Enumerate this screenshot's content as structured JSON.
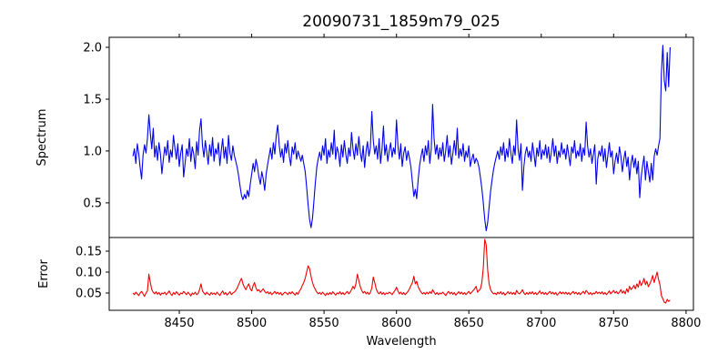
{
  "colors": {
    "spectrum_line": "#0000ee",
    "error_line": "#ee0000",
    "axis": "#000000",
    "background": "#ffffff"
  },
  "chart_data": {
    "type": "line",
    "title": "20090731_1859m79_025",
    "xlabel": "Wavelength",
    "grid": false,
    "legend": "none",
    "xlim": [
      8401.6,
      8805.1
    ],
    "xticks": [
      8450,
      8500,
      8550,
      8600,
      8650,
      8700,
      8750,
      8800
    ],
    "xtick_labels": [
      "8450",
      "8500",
      "8550",
      "8600",
      "8650",
      "8700",
      "8750",
      "8800"
    ],
    "x_start": 8418,
    "x_step": 1,
    "panels": [
      {
        "name": "spectrum",
        "ylabel": "Spectrum",
        "ylim": [
          0.165,
          2.097
        ],
        "yticks": [
          0.5,
          1.0,
          1.5,
          2.0
        ],
        "ytick_labels": [
          "0.5",
          "1.0",
          "1.5",
          "2.0"
        ]
      },
      {
        "name": "error",
        "ylabel": "Error",
        "ylim": [
          0.0087,
          0.1826
        ],
        "yticks": [
          0.05,
          0.1,
          0.15
        ],
        "ytick_labels": [
          "0.05",
          "0.10",
          "0.15"
        ]
      }
    ],
    "series": [
      {
        "name": "spectrum",
        "panel": 0,
        "color": "#0000ee",
        "values": [
          0.95,
          1.02,
          0.88,
          1.07,
          0.97,
          0.84,
          0.73,
          0.96,
          1.06,
          0.98,
          1.12,
          1.35,
          1.17,
          1.02,
          1.22,
          0.94,
          1.05,
          0.91,
          1.08,
          0.97,
          0.78,
          0.92,
          1.04,
          0.96,
          1.1,
          0.89,
          1.01,
          0.94,
          1.15,
          1.03,
          0.92,
          1.07,
          0.85,
          0.98,
          1.06,
          0.75,
          0.88,
          1.02,
          0.95,
          1.12,
          0.9,
          1.04,
          0.97,
          0.83,
          1.09,
          0.96,
          1.2,
          1.31,
          1.05,
          0.94,
          1.1,
          0.99,
          0.87,
          1.06,
          0.95,
          1.13,
          0.9,
          1.02,
          0.97,
          1.08,
          0.86,
          1.0,
          1.12,
          0.93,
          1.04,
          0.88,
          1.15,
          0.98,
          0.91,
          1.05,
          0.96,
          0.9,
          0.84,
          0.76,
          0.66,
          0.57,
          0.53,
          0.58,
          0.54,
          0.62,
          0.56,
          0.68,
          0.78,
          0.88,
          0.8,
          0.92,
          0.85,
          0.75,
          0.68,
          0.8,
          0.73,
          0.62,
          0.78,
          0.87,
          0.95,
          1.03,
          0.92,
          1.08,
          0.97,
          1.15,
          1.25,
          1.06,
          0.94,
          1.02,
          0.89,
          1.07,
          0.98,
          1.1,
          0.95,
          0.86,
          1.04,
          0.97,
          1.08,
          0.92,
          1.0,
          0.95,
          0.9,
          0.96,
          0.88,
          0.8,
          0.65,
          0.48,
          0.34,
          0.26,
          0.35,
          0.52,
          0.7,
          0.85,
          0.93,
          0.99,
          0.91,
          1.05,
          0.96,
          1.12,
          0.88,
          1.01,
          0.94,
          1.08,
          0.97,
          1.2,
          0.92,
          1.04,
          0.98,
          0.85,
          1.06,
          0.94,
          1.1,
          0.97,
          0.88,
          1.03,
          0.95,
          1.18,
          1.02,
          0.92,
          1.07,
          0.96,
          1.14,
          0.99,
          0.9,
          1.05,
          0.84,
          1.0,
          1.09,
          0.95,
          1.03,
          1.38,
          1.1,
          0.97,
          1.05,
          0.92,
          1.12,
          0.88,
          1.02,
          1.24,
          0.96,
          1.06,
          0.9,
          1.0,
          1.08,
          0.94,
          1.03,
          0.97,
          1.3,
          1.05,
          0.92,
          1.07,
          0.85,
          0.98,
          1.04,
          0.91,
          1.0,
          0.93,
          0.84,
          0.7,
          0.56,
          0.63,
          0.54,
          0.72,
          0.86,
          0.95,
          1.02,
          0.9,
          1.05,
          0.96,
          1.1,
          0.88,
          1.02,
          1.45,
          1.12,
          0.97,
          1.06,
          0.92,
          1.03,
          0.95,
          1.08,
          0.9,
          1.0,
          1.15,
          0.94,
          1.05,
          0.87,
          0.98,
          1.1,
          0.96,
          1.22,
          0.93,
          1.02,
          0.95,
          1.07,
          0.9,
          1.0,
          0.94,
          1.05,
          0.85,
          0.92,
          0.97,
          0.88,
          0.93,
          0.9,
          0.84,
          0.74,
          0.64,
          0.5,
          0.34,
          0.23,
          0.31,
          0.46,
          0.61,
          0.72,
          0.82,
          0.89,
          0.95,
          1.0,
          0.92,
          1.04,
          0.96,
          1.08,
          0.9,
          1.02,
          0.94,
          1.12,
          0.98,
          0.88,
          1.05,
          0.96,
          1.3,
          1.02,
          0.91,
          1.07,
          0.62,
          0.85,
          0.98,
          1.04,
          0.94,
          1.0,
          0.9,
          1.08,
          0.97,
          0.85,
          1.03,
          0.95,
          1.1,
          0.92,
          1.01,
          0.96,
          1.06,
          0.93,
          1.04,
          0.89,
          0.99,
          1.12,
          0.95,
          1.05,
          0.88,
          1.0,
          0.94,
          1.08,
          0.97,
          1.02,
          0.92,
          1.06,
          0.96,
          0.86,
          1.04,
          0.98,
          1.1,
          0.93,
          1.0,
          0.95,
          1.07,
          0.9,
          1.03,
          0.96,
          1.28,
          1.05,
          0.94,
          1.02,
          0.88,
          0.97,
          1.06,
          0.68,
          0.92,
          1.0,
          0.95,
          1.05,
          0.9,
          1.02,
          0.84,
          0.96,
          1.08,
          0.94,
          1.0,
          0.78,
          0.9,
          0.98,
          0.88,
          1.04,
          0.95,
          0.8,
          0.92,
          1.0,
          0.85,
          0.94,
          0.72,
          0.88,
          0.96,
          0.84,
          0.93,
          0.78,
          0.9,
          0.55,
          0.75,
          0.86,
          0.95,
          0.72,
          0.9,
          0.8,
          0.7,
          0.88,
          0.72,
          0.95,
          1.02,
          0.96,
          1.05,
          1.12,
          1.75,
          2.02,
          1.68,
          1.58,
          1.95,
          1.62,
          2.0
        ]
      },
      {
        "name": "error",
        "panel": 1,
        "color": "#ee0000",
        "values": [
          0.05,
          0.046,
          0.052,
          0.048,
          0.044,
          0.05,
          0.054,
          0.048,
          0.042,
          0.05,
          0.055,
          0.095,
          0.075,
          0.058,
          0.052,
          0.048,
          0.053,
          0.047,
          0.051,
          0.045,
          0.05,
          0.048,
          0.052,
          0.046,
          0.05,
          0.055,
          0.048,
          0.044,
          0.051,
          0.047,
          0.053,
          0.049,
          0.045,
          0.05,
          0.048,
          0.054,
          0.05,
          0.046,
          0.052,
          0.048,
          0.043,
          0.05,
          0.047,
          0.052,
          0.046,
          0.049,
          0.058,
          0.072,
          0.055,
          0.05,
          0.046,
          0.052,
          0.048,
          0.045,
          0.051,
          0.047,
          0.05,
          0.046,
          0.052,
          0.048,
          0.044,
          0.05,
          0.055,
          0.047,
          0.051,
          0.045,
          0.049,
          0.053,
          0.046,
          0.05,
          0.052,
          0.056,
          0.062,
          0.07,
          0.078,
          0.085,
          0.072,
          0.064,
          0.058,
          0.066,
          0.072,
          0.06,
          0.055,
          0.068,
          0.075,
          0.062,
          0.055,
          0.058,
          0.052,
          0.056,
          0.06,
          0.054,
          0.05,
          0.053,
          0.048,
          0.052,
          0.046,
          0.05,
          0.054,
          0.048,
          0.052,
          0.047,
          0.051,
          0.045,
          0.049,
          0.052,
          0.05,
          0.046,
          0.052,
          0.048,
          0.053,
          0.049,
          0.045,
          0.051,
          0.047,
          0.055,
          0.06,
          0.068,
          0.075,
          0.085,
          0.1,
          0.115,
          0.108,
          0.09,
          0.075,
          0.065,
          0.058,
          0.052,
          0.048,
          0.051,
          0.047,
          0.052,
          0.048,
          0.044,
          0.05,
          0.046,
          0.051,
          0.047,
          0.053,
          0.049,
          0.045,
          0.05,
          0.048,
          0.053,
          0.047,
          0.051,
          0.046,
          0.05,
          0.054,
          0.048,
          0.052,
          0.058,
          0.066,
          0.06,
          0.072,
          0.095,
          0.08,
          0.065,
          0.056,
          0.05,
          0.054,
          0.048,
          0.052,
          0.047,
          0.051,
          0.062,
          0.088,
          0.075,
          0.06,
          0.052,
          0.048,
          0.053,
          0.047,
          0.051,
          0.046,
          0.05,
          0.048,
          0.052,
          0.05,
          0.046,
          0.052,
          0.056,
          0.064,
          0.055,
          0.048,
          0.052,
          0.047,
          0.051,
          0.046,
          0.05,
          0.054,
          0.06,
          0.068,
          0.075,
          0.09,
          0.072,
          0.078,
          0.065,
          0.058,
          0.052,
          0.048,
          0.051,
          0.047,
          0.052,
          0.048,
          0.053,
          0.049,
          0.058,
          0.052,
          0.047,
          0.051,
          0.046,
          0.05,
          0.048,
          0.052,
          0.048,
          0.044,
          0.05,
          0.054,
          0.048,
          0.052,
          0.047,
          0.051,
          0.045,
          0.049,
          0.053,
          0.048,
          0.052,
          0.047,
          0.051,
          0.046,
          0.05,
          0.054,
          0.048,
          0.052,
          0.056,
          0.06,
          0.066,
          0.052,
          0.056,
          0.06,
          0.075,
          0.11,
          0.178,
          0.165,
          0.105,
          0.072,
          0.058,
          0.052,
          0.048,
          0.05,
          0.046,
          0.052,
          0.048,
          0.053,
          0.047,
          0.051,
          0.045,
          0.049,
          0.053,
          0.048,
          0.052,
          0.047,
          0.051,
          0.046,
          0.056,
          0.05,
          0.048,
          0.052,
          0.058,
          0.05,
          0.046,
          0.051,
          0.047,
          0.052,
          0.048,
          0.053,
          0.047,
          0.051,
          0.046,
          0.05,
          0.055,
          0.048,
          0.052,
          0.047,
          0.051,
          0.046,
          0.05,
          0.054,
          0.048,
          0.052,
          0.047,
          0.051,
          0.045,
          0.049,
          0.053,
          0.048,
          0.052,
          0.048,
          0.052,
          0.047,
          0.051,
          0.046,
          0.05,
          0.054,
          0.048,
          0.052,
          0.047,
          0.051,
          0.046,
          0.05,
          0.054,
          0.048,
          0.056,
          0.052,
          0.047,
          0.051,
          0.046,
          0.05,
          0.048,
          0.054,
          0.049,
          0.052,
          0.048,
          0.053,
          0.047,
          0.051,
          0.046,
          0.05,
          0.055,
          0.048,
          0.052,
          0.056,
          0.05,
          0.054,
          0.048,
          0.052,
          0.058,
          0.05,
          0.055,
          0.048,
          0.06,
          0.052,
          0.066,
          0.058,
          0.062,
          0.068,
          0.06,
          0.072,
          0.064,
          0.08,
          0.068,
          0.075,
          0.085,
          0.07,
          0.078,
          0.065,
          0.072,
          0.08,
          0.092,
          0.075,
          0.088,
          0.1,
          0.082,
          0.07,
          0.044,
          0.036,
          0.028,
          0.026,
          0.035,
          0.03,
          0.033
        ]
      }
    ]
  }
}
